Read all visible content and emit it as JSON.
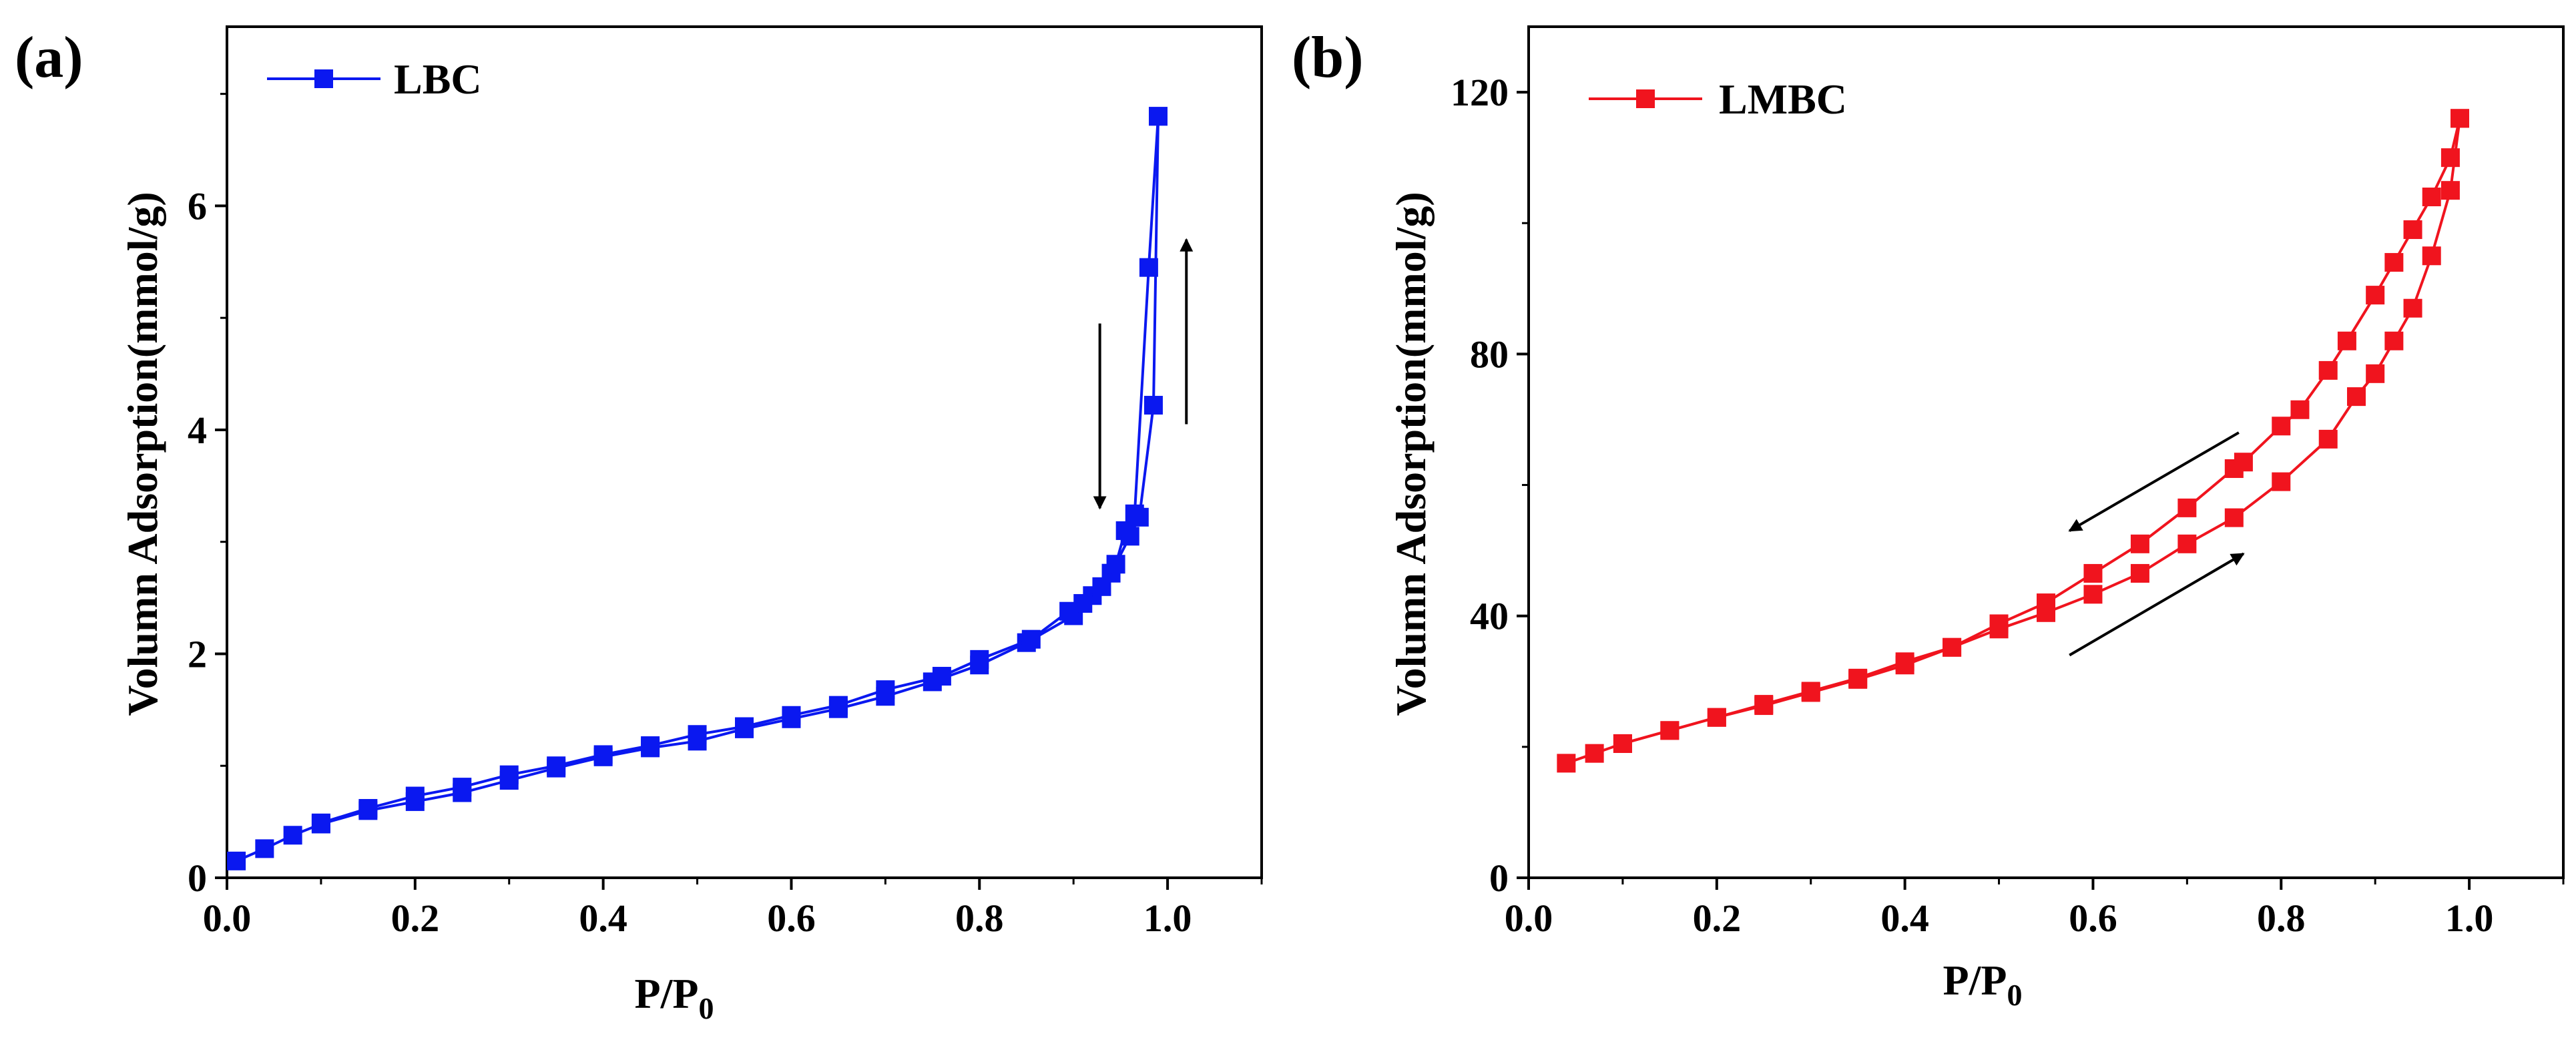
{
  "chart_data": [
    {
      "type": "line",
      "panel_label": "(a)",
      "xlabel_main": "P/P",
      "xlabel_sub": "0",
      "ylabel": "Volumn Adsorption(mmol/g)",
      "xlim": [
        0.0,
        1.1
      ],
      "ylim": [
        0,
        7.6
      ],
      "xticks": [
        0.0,
        0.2,
        0.4,
        0.6,
        0.8,
        1.0
      ],
      "xtick_labels": [
        "0.0",
        "0.2",
        "0.4",
        "0.6",
        "0.8",
        "1.0"
      ],
      "yticks": [
        0,
        2,
        4,
        6
      ],
      "ytick_labels": [
        "0",
        "2",
        "4",
        "6"
      ],
      "color": "#0a18f0",
      "legend": "LBC",
      "legend_position": "top-left",
      "series": [
        {
          "name": "adsorption",
          "x": [
            0.01,
            0.04,
            0.07,
            0.1,
            0.15,
            0.2,
            0.25,
            0.3,
            0.35,
            0.4,
            0.45,
            0.5,
            0.55,
            0.6,
            0.65,
            0.7,
            0.75,
            0.8,
            0.85,
            0.9,
            0.92,
            0.94,
            0.96,
            0.97,
            0.985,
            0.99
          ],
          "y": [
            0.15,
            0.26,
            0.38,
            0.48,
            0.6,
            0.68,
            0.76,
            0.87,
            0.98,
            1.08,
            1.16,
            1.22,
            1.33,
            1.42,
            1.51,
            1.62,
            1.75,
            1.9,
            2.1,
            2.34,
            2.52,
            2.72,
            3.05,
            3.22,
            4.22,
            6.8
          ]
        },
        {
          "name": "desorption",
          "x": [
            0.99,
            0.98,
            0.965,
            0.955,
            0.945,
            0.93,
            0.91,
            0.895,
            0.855,
            0.8,
            0.76,
            0.7,
            0.65,
            0.6,
            0.55,
            0.5,
            0.45,
            0.4,
            0.35,
            0.3,
            0.25,
            0.2,
            0.15,
            0.1
          ],
          "y": [
            6.8,
            5.45,
            3.25,
            3.1,
            2.8,
            2.6,
            2.45,
            2.38,
            2.13,
            1.95,
            1.8,
            1.68,
            1.54,
            1.45,
            1.35,
            1.28,
            1.18,
            1.1,
            1.0,
            0.92,
            0.81,
            0.73,
            0.62,
            0.49
          ]
        }
      ],
      "arrows": [
        {
          "x": 0.928,
          "y_from": 4.95,
          "y_to": 3.3
        },
        {
          "x": 1.02,
          "y_from": 4.05,
          "y_to": 5.7
        }
      ]
    },
    {
      "type": "line",
      "panel_label": "(b)",
      "xlabel_main": "P/P",
      "xlabel_sub": "0",
      "ylabel": "Volumn Adsorption(mmol/g)",
      "xlim": [
        0.0,
        1.1
      ],
      "ylim": [
        0,
        130
      ],
      "xticks": [
        0.0,
        0.2,
        0.4,
        0.6,
        0.8,
        1.0
      ],
      "xtick_labels": [
        "0.0",
        "0.2",
        "0.4",
        "0.6",
        "0.8",
        "1.0"
      ],
      "yticks": [
        0,
        40,
        80,
        120
      ],
      "ytick_labels": [
        "0",
        "40",
        "80",
        "120"
      ],
      "color": "#f0141e",
      "legend": "LMBC",
      "legend_position": "top-left",
      "series": [
        {
          "name": "adsorption",
          "x": [
            0.04,
            0.07,
            0.1,
            0.15,
            0.2,
            0.25,
            0.3,
            0.35,
            0.4,
            0.45,
            0.5,
            0.55,
            0.6,
            0.65,
            0.7,
            0.75,
            0.8,
            0.85,
            0.88,
            0.9,
            0.92,
            0.94,
            0.96,
            0.98,
            0.99
          ],
          "y": [
            17.5,
            19.0,
            20.5,
            22.5,
            24.5,
            26.3,
            28.3,
            30.3,
            32.5,
            35.2,
            38.0,
            40.5,
            43.3,
            46.5,
            51.0,
            55.0,
            60.5,
            67.0,
            73.5,
            77.0,
            82.0,
            87.0,
            95.0,
            105.0,
            116.0
          ]
        },
        {
          "name": "desorption",
          "x": [
            0.99,
            0.98,
            0.96,
            0.94,
            0.92,
            0.9,
            0.87,
            0.85,
            0.82,
            0.8,
            0.76,
            0.75,
            0.7,
            0.65,
            0.6,
            0.55,
            0.5,
            0.45,
            0.4,
            0.35,
            0.3,
            0.25,
            0.2,
            0.15,
            0.1
          ],
          "y": [
            116.0,
            110.0,
            104.0,
            99.0,
            94.0,
            89.0,
            82.0,
            77.5,
            71.5,
            69.0,
            63.5,
            62.5,
            56.5,
            51.0,
            46.5,
            42.0,
            38.8,
            35.2,
            33.0,
            30.5,
            28.5,
            26.5,
            24.5,
            22.5,
            20.5
          ]
        }
      ],
      "arrows": [
        {
          "x_from": 0.755,
          "y_from": 68.0,
          "x_to": 0.575,
          "y_to": 53.0
        },
        {
          "x_from": 0.575,
          "y_from": 34.0,
          "x_to": 0.76,
          "y_to": 49.5
        }
      ]
    }
  ]
}
